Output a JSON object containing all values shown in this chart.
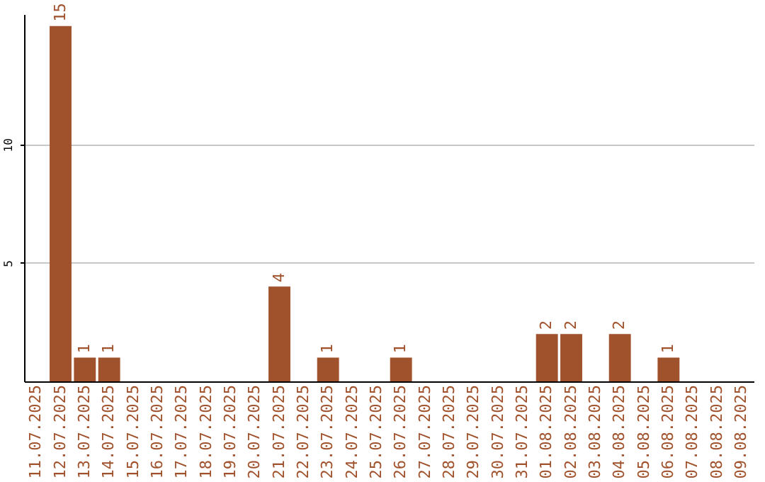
{
  "chart_data": {
    "type": "bar",
    "categories": [
      "11.07.2025",
      "12.07.2025",
      "13.07.2025",
      "14.07.2025",
      "15.07.2025",
      "16.07.2025",
      "17.07.2025",
      "18.07.2025",
      "19.07.2025",
      "20.07.2025",
      "21.07.2025",
      "22.07.2025",
      "23.07.2025",
      "24.07.2025",
      "25.07.2025",
      "26.07.2025",
      "27.07.2025",
      "28.07.2025",
      "29.07.2025",
      "30.07.2025",
      "31.07.2025",
      "01.08.2025",
      "02.08.2025",
      "03.08.2025",
      "04.08.2025",
      "05.08.2025",
      "06.08.2025",
      "07.08.2025",
      "08.08.2025",
      "09.08.2025"
    ],
    "values": [
      0,
      15,
      1,
      1,
      0,
      0,
      0,
      0,
      0,
      0,
      4,
      0,
      1,
      0,
      0,
      1,
      0,
      0,
      0,
      0,
      0,
      2,
      2,
      0,
      2,
      0,
      1,
      0,
      0,
      0
    ],
    "value_labels": [
      null,
      "15",
      "1",
      "1",
      null,
      null,
      null,
      null,
      null,
      null,
      "4",
      null,
      "1",
      null,
      null,
      "1",
      null,
      null,
      null,
      null,
      null,
      "2",
      "2",
      null,
      "2",
      null,
      "1",
      null,
      null,
      null
    ],
    "color": "#a0522d",
    "ylim": [
      0,
      15.5
    ],
    "yticks": [
      5,
      10
    ],
    "grid": "y"
  }
}
